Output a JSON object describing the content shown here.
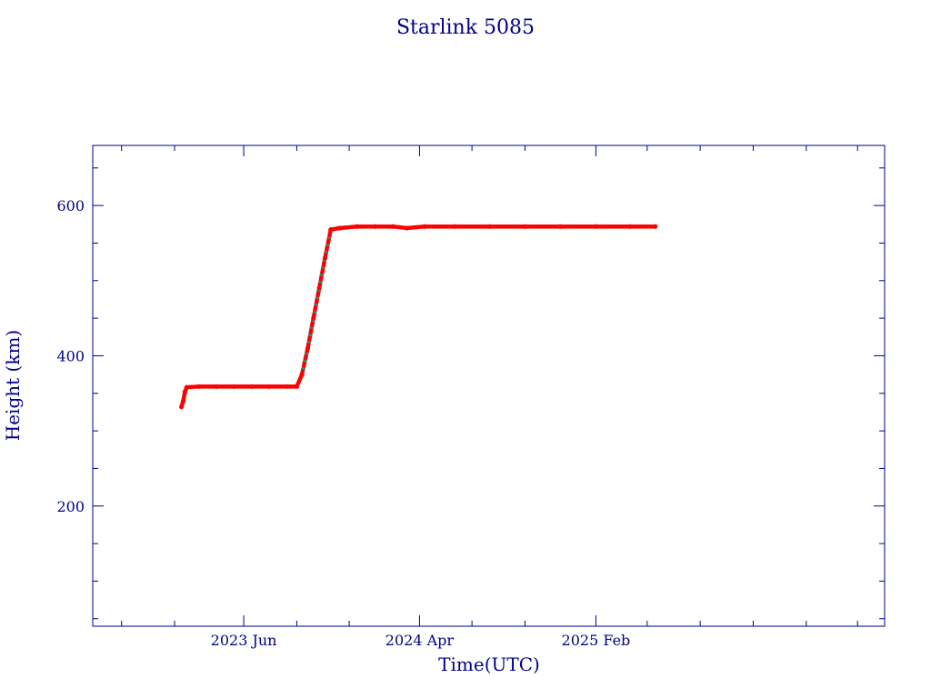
{
  "colors": {
    "text": "#00008b",
    "axis": "#00008b",
    "points": "#ff0000",
    "points_secondary": "#00aaaa",
    "background": "#ffffff"
  },
  "chart_data": {
    "type": "scatter",
    "title": "Starlink 5085",
    "xlabel": "Time(UTC)",
    "ylabel": "Height (km)",
    "x_is_date": true,
    "xlim": [
      "2022-09-12",
      "2026-06-17"
    ],
    "ylim": [
      40,
      680
    ],
    "x_ticks": [
      {
        "date": "2023-06-01",
        "label": "2023 Jun"
      },
      {
        "date": "2024-04-01",
        "label": "2024 Apr"
      },
      {
        "date": "2025-02-01",
        "label": "2025 Feb"
      }
    ],
    "x_minor_ticks": [
      "2022-11-01",
      "2023-02-01",
      "2023-09-01",
      "2023-12-01",
      "2024-07-01",
      "2024-10-01",
      "2025-05-01",
      "2025-08-01",
      "2025-11-01",
      "2026-02-01",
      "2026-05-01"
    ],
    "y_ticks": [
      200,
      400,
      600
    ],
    "y_minor_step": 50,
    "grid": false,
    "legend": "none",
    "series": [
      {
        "marker": "dot",
        "points": [
          [
            "2023-02-13",
            332
          ],
          [
            "2023-02-16",
            340
          ],
          [
            "2023-02-19",
            352
          ],
          [
            "2023-02-22",
            358
          ],
          [
            "2023-03-15",
            359
          ],
          [
            "2023-04-15",
            359
          ],
          [
            "2023-05-15",
            359
          ],
          [
            "2023-06-15",
            359
          ],
          [
            "2023-07-15",
            359
          ],
          [
            "2023-08-15",
            359
          ],
          [
            "2023-09-01",
            359
          ],
          [
            "2023-09-10",
            375
          ],
          [
            "2023-09-20",
            410
          ],
          [
            "2023-09-30",
            450
          ],
          [
            "2023-10-10",
            490
          ],
          [
            "2023-10-20",
            530
          ],
          [
            "2023-10-30",
            568
          ],
          [
            "2023-11-15",
            570
          ],
          [
            "2023-12-15",
            572
          ],
          [
            "2024-01-15",
            572
          ],
          [
            "2024-02-15",
            572
          ],
          [
            "2024-03-10",
            570
          ],
          [
            "2024-04-10",
            572
          ],
          [
            "2024-06-01",
            572
          ],
          [
            "2024-08-01",
            572
          ],
          [
            "2024-10-01",
            572
          ],
          [
            "2024-12-01",
            572
          ],
          [
            "2025-02-01",
            572
          ],
          [
            "2025-04-01",
            572
          ],
          [
            "2025-05-15",
            572
          ]
        ]
      }
    ]
  }
}
